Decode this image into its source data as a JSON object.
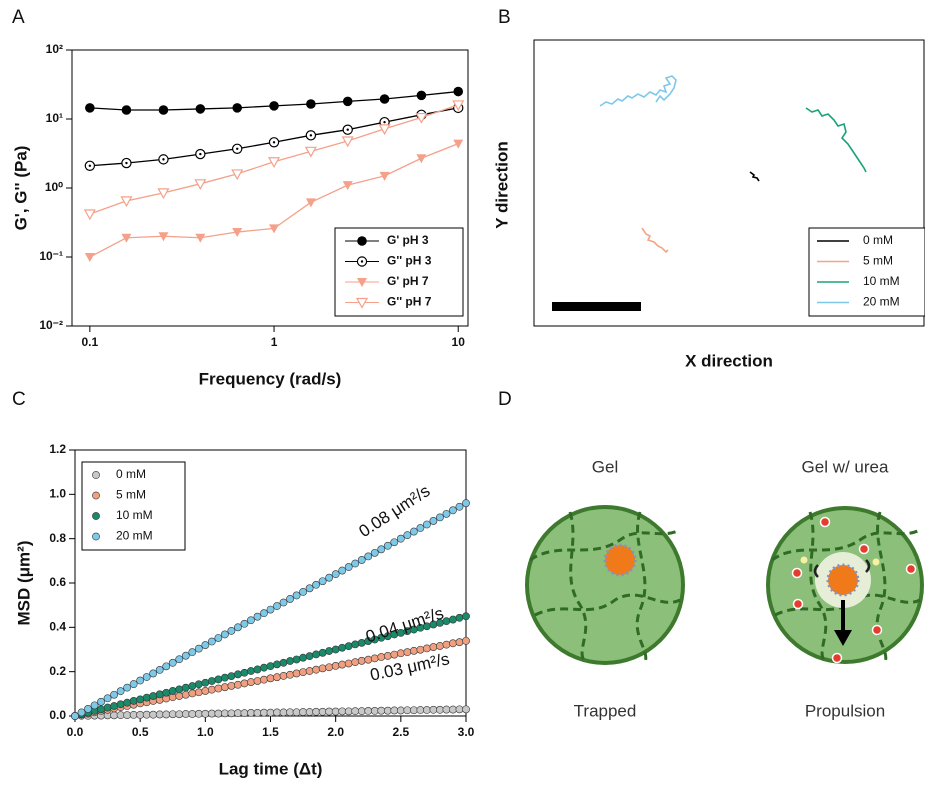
{
  "chart_data": [
    {
      "type": "line",
      "panel_label": "A",
      "x_label": "Frequency (rad/s)",
      "y_label": "G', G'' (Pa)",
      "xscale": "log",
      "yscale": "log",
      "xlim": [
        0.08,
        11.3
      ],
      "ylim": [
        0.01,
        100
      ],
      "xticks": [
        0.1,
        1,
        10
      ],
      "yticks": [
        {
          "value": 0.01,
          "label": "10⁻²"
        },
        {
          "value": 0.1,
          "label": "10⁻¹"
        },
        {
          "value": 1,
          "label": "10⁰"
        },
        {
          "value": 10,
          "label": "10¹"
        },
        {
          "value": 100,
          "label": "10²"
        }
      ],
      "legend": "lower right",
      "x": [
        0.1,
        0.158,
        0.251,
        0.398,
        0.631,
        1,
        1.585,
        2.512,
        3.981,
        6.31,
        10
      ],
      "series": [
        {
          "name": "G' pH 3",
          "color": "#000000",
          "marker": "circle",
          "values": [
            14.5,
            13.5,
            13.5,
            14,
            14.5,
            15.5,
            16.5,
            18,
            19.5,
            22,
            25
          ]
        },
        {
          "name": "G'' pH 3",
          "color": "#000000",
          "marker": "circle-dot",
          "values": [
            2.1,
            2.3,
            2.6,
            3.1,
            3.7,
            4.6,
            5.8,
            7.0,
            9.0,
            11.5,
            14.5
          ]
        },
        {
          "name": "G' pH 7",
          "color": "#f4a08a",
          "marker": "triangle-down",
          "values": [
            0.1,
            0.19,
            0.2,
            0.19,
            0.23,
            0.26,
            0.62,
            1.1,
            1.5,
            2.7,
            4.4
          ]
        },
        {
          "name": "G'' pH 7",
          "color": "#f4a08a",
          "marker": "triangle-down-open",
          "values": [
            0.42,
            0.65,
            0.85,
            1.15,
            1.6,
            2.4,
            3.4,
            4.8,
            7.2,
            10.5,
            16
          ]
        }
      ]
    },
    {
      "type": "trajectory",
      "panel_label": "B",
      "x_label": "X direction",
      "y_label": "Y direction",
      "legend": "lower right",
      "series": [
        {
          "name": "0 mM",
          "color": "#000000"
        },
        {
          "name": "5 mM",
          "color": "#f4a585"
        },
        {
          "name": "10 mM",
          "color": "#1aa37a"
        },
        {
          "name": "20 mM",
          "color": "#7ec8ea"
        }
      ]
    },
    {
      "type": "scatter",
      "panel_label": "C",
      "x_label": "Lag time (Δt)",
      "y_label": "MSD (μm²)",
      "xlim": [
        0,
        3
      ],
      "ylim": [
        0,
        1.2
      ],
      "xticks": [
        {
          "value": 0,
          "label": "0.0"
        },
        0.5,
        {
          "value": 1,
          "label": "1.0"
        },
        1.5,
        {
          "value": 2,
          "label": "2.0"
        },
        2.5,
        {
          "value": 3,
          "label": "3.0"
        }
      ],
      "yticks": [
        {
          "value": 0,
          "label": "0.0"
        },
        0.2,
        0.4,
        0.6,
        0.8,
        {
          "value": 1,
          "label": "1.0"
        },
        1.2
      ],
      "legend": "upper left",
      "annotations": [
        "0.08 μm²/s",
        "0.04 μm²/s",
        "0.03 μm²/s"
      ],
      "x": [
        0,
        0.05,
        0.1,
        0.15,
        0.2,
        0.25,
        0.3,
        0.35,
        0.4,
        0.45,
        0.5,
        0.55,
        0.6,
        0.65,
        0.7,
        0.75,
        0.8,
        0.85,
        0.9,
        0.95,
        1,
        1.05,
        1.1,
        1.15,
        1.2,
        1.25,
        1.3,
        1.35,
        1.4,
        1.45,
        1.5,
        1.55,
        1.6,
        1.65,
        1.7,
        1.75,
        1.8,
        1.85,
        1.9,
        1.95,
        2,
        2.05,
        2.1,
        2.15,
        2.2,
        2.25,
        2.3,
        2.35,
        2.4,
        2.45,
        2.5,
        2.55,
        2.6,
        2.65,
        2.7,
        2.75,
        2.8,
        2.85,
        2.9,
        2.95,
        3
      ],
      "series": [
        {
          "name": "0 mM",
          "color": "#c8c8c8",
          "values": [
            0,
            0.001,
            0.001,
            0.002,
            0.002,
            0.003,
            0.003,
            0.004,
            0.004,
            0.005,
            0.005,
            0.006,
            0.006,
            0.007,
            0.007,
            0.008,
            0.008,
            0.009,
            0.009,
            0.01,
            0.01,
            0.011,
            0.011,
            0.012,
            0.012,
            0.013,
            0.013,
            0.014,
            0.014,
            0.015,
            0.015,
            0.016,
            0.016,
            0.017,
            0.017,
            0.018,
            0.018,
            0.019,
            0.019,
            0.02,
            0.02,
            0.021,
            0.021,
            0.022,
            0.022,
            0.023,
            0.023,
            0.024,
            0.024,
            0.025,
            0.025,
            0.026,
            0.026,
            0.027,
            0.027,
            0.028,
            0.028,
            0.029,
            0.029,
            0.03,
            0.03
          ]
        },
        {
          "name": "5 mM",
          "color": "#f0a080",
          "values": [
            0,
            0.006,
            0.011,
            0.017,
            0.023,
            0.028,
            0.034,
            0.04,
            0.045,
            0.051,
            0.057,
            0.062,
            0.068,
            0.073,
            0.079,
            0.085,
            0.09,
            0.096,
            0.102,
            0.107,
            0.113,
            0.119,
            0.124,
            0.13,
            0.136,
            0.141,
            0.147,
            0.153,
            0.158,
            0.164,
            0.17,
            0.175,
            0.181,
            0.186,
            0.192,
            0.198,
            0.203,
            0.209,
            0.215,
            0.22,
            0.226,
            0.232,
            0.237,
            0.243,
            0.249,
            0.254,
            0.26,
            0.266,
            0.271,
            0.277,
            0.283,
            0.288,
            0.294,
            0.299,
            0.305,
            0.311,
            0.316,
            0.322,
            0.328,
            0.333,
            0.339
          ]
        },
        {
          "name": "10 mM",
          "color": "#1a8a6a",
          "values": [
            0,
            0.008,
            0.015,
            0.023,
            0.03,
            0.038,
            0.045,
            0.053,
            0.06,
            0.068,
            0.075,
            0.083,
            0.09,
            0.098,
            0.105,
            0.113,
            0.12,
            0.128,
            0.135,
            0.143,
            0.15,
            0.158,
            0.165,
            0.173,
            0.18,
            0.188,
            0.195,
            0.203,
            0.21,
            0.218,
            0.225,
            0.233,
            0.24,
            0.248,
            0.255,
            0.263,
            0.27,
            0.278,
            0.285,
            0.293,
            0.3,
            0.308,
            0.315,
            0.323,
            0.33,
            0.338,
            0.345,
            0.353,
            0.36,
            0.368,
            0.375,
            0.383,
            0.39,
            0.398,
            0.405,
            0.413,
            0.42,
            0.428,
            0.435,
            0.443,
            0.45
          ]
        },
        {
          "name": "20 mM",
          "color": "#7ec8e8",
          "values": [
            0,
            0.016,
            0.032,
            0.048,
            0.064,
            0.08,
            0.096,
            0.112,
            0.128,
            0.144,
            0.16,
            0.176,
            0.192,
            0.208,
            0.224,
            0.24,
            0.256,
            0.272,
            0.288,
            0.304,
            0.32,
            0.336,
            0.352,
            0.368,
            0.384,
            0.4,
            0.416,
            0.432,
            0.448,
            0.464,
            0.48,
            0.496,
            0.512,
            0.528,
            0.544,
            0.56,
            0.576,
            0.592,
            0.608,
            0.624,
            0.64,
            0.656,
            0.672,
            0.688,
            0.704,
            0.72,
            0.736,
            0.752,
            0.768,
            0.784,
            0.8,
            0.816,
            0.832,
            0.848,
            0.864,
            0.88,
            0.896,
            0.912,
            0.928,
            0.944,
            0.96
          ]
        }
      ]
    }
  ],
  "diagram": {
    "panel_label": "D",
    "left": {
      "title": "Gel",
      "caption": "Trapped"
    },
    "right": {
      "title": "Gel w/ urea",
      "caption": "Propulsion"
    }
  }
}
